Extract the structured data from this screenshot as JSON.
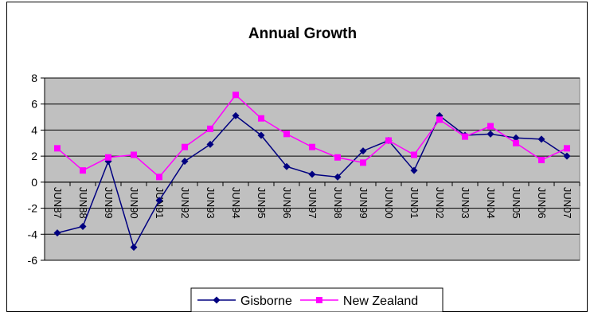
{
  "chart_data": {
    "type": "line",
    "title": "Annual Growth",
    "xlabel": "",
    "ylabel": "",
    "categories": [
      "JUN87",
      "JUN88",
      "JUN89",
      "JUN90",
      "JUN91",
      "JUN92",
      "JUN93",
      "JUN94",
      "JUN95",
      "JUN96",
      "JUN97",
      "JUN98",
      "JUN99",
      "JUN00",
      "JUN01",
      "JUN02",
      "JUN03",
      "JUN04",
      "JUN05",
      "JUN06",
      "JUN07"
    ],
    "ylim": [
      -6,
      8
    ],
    "yticks": [
      -6,
      -4,
      -2,
      0,
      2,
      4,
      6,
      8
    ],
    "grid": true,
    "legend_position": "bottom",
    "colors": {
      "plot_background": "#C0C0C0",
      "Gisborne": "#000080",
      "New Zealand": "#FF00FF"
    },
    "series": [
      {
        "name": "Gisborne",
        "marker": "diamond",
        "values": [
          -3.9,
          -3.4,
          1.6,
          -5.0,
          -1.4,
          1.6,
          2.9,
          5.1,
          3.6,
          1.2,
          0.6,
          0.4,
          2.4,
          3.2,
          0.9,
          5.1,
          3.6,
          3.7,
          3.4,
          3.3,
          2.0
        ]
      },
      {
        "name": "New Zealand",
        "marker": "square",
        "values": [
          2.6,
          0.9,
          1.9,
          2.1,
          0.4,
          2.7,
          4.1,
          6.7,
          4.9,
          3.7,
          2.7,
          1.9,
          1.5,
          3.2,
          2.1,
          4.8,
          3.5,
          4.3,
          3.0,
          1.7,
          2.6
        ]
      }
    ]
  }
}
